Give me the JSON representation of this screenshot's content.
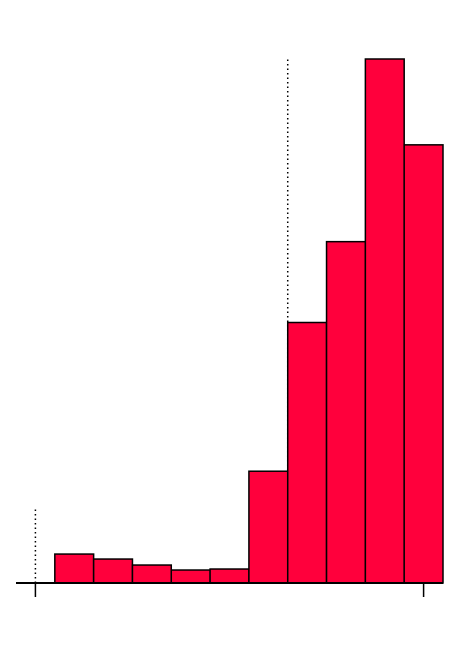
{
  "chart_data": {
    "type": "bar",
    "title": "",
    "xlabel": "",
    "ylabel": "",
    "bar_color": "#ff003c",
    "edge_color": "#000000",
    "background": "#ffffff",
    "values": [
      0,
      29,
      24,
      18,
      13,
      14,
      112,
      261,
      342,
      525,
      439
    ],
    "ylim": [
      0,
      525
    ],
    "reference_lines": [
      {
        "at_bin": 0.5,
        "value": 76,
        "style": "dotted"
      },
      {
        "at_bin": 7.0,
        "value": 525,
        "style": "dotted"
      }
    ],
    "x_ticks_at_bin": [
      0.5,
      10.5
    ],
    "x_tick_labels": [
      "",
      ""
    ],
    "grid": false,
    "legend": "none"
  }
}
